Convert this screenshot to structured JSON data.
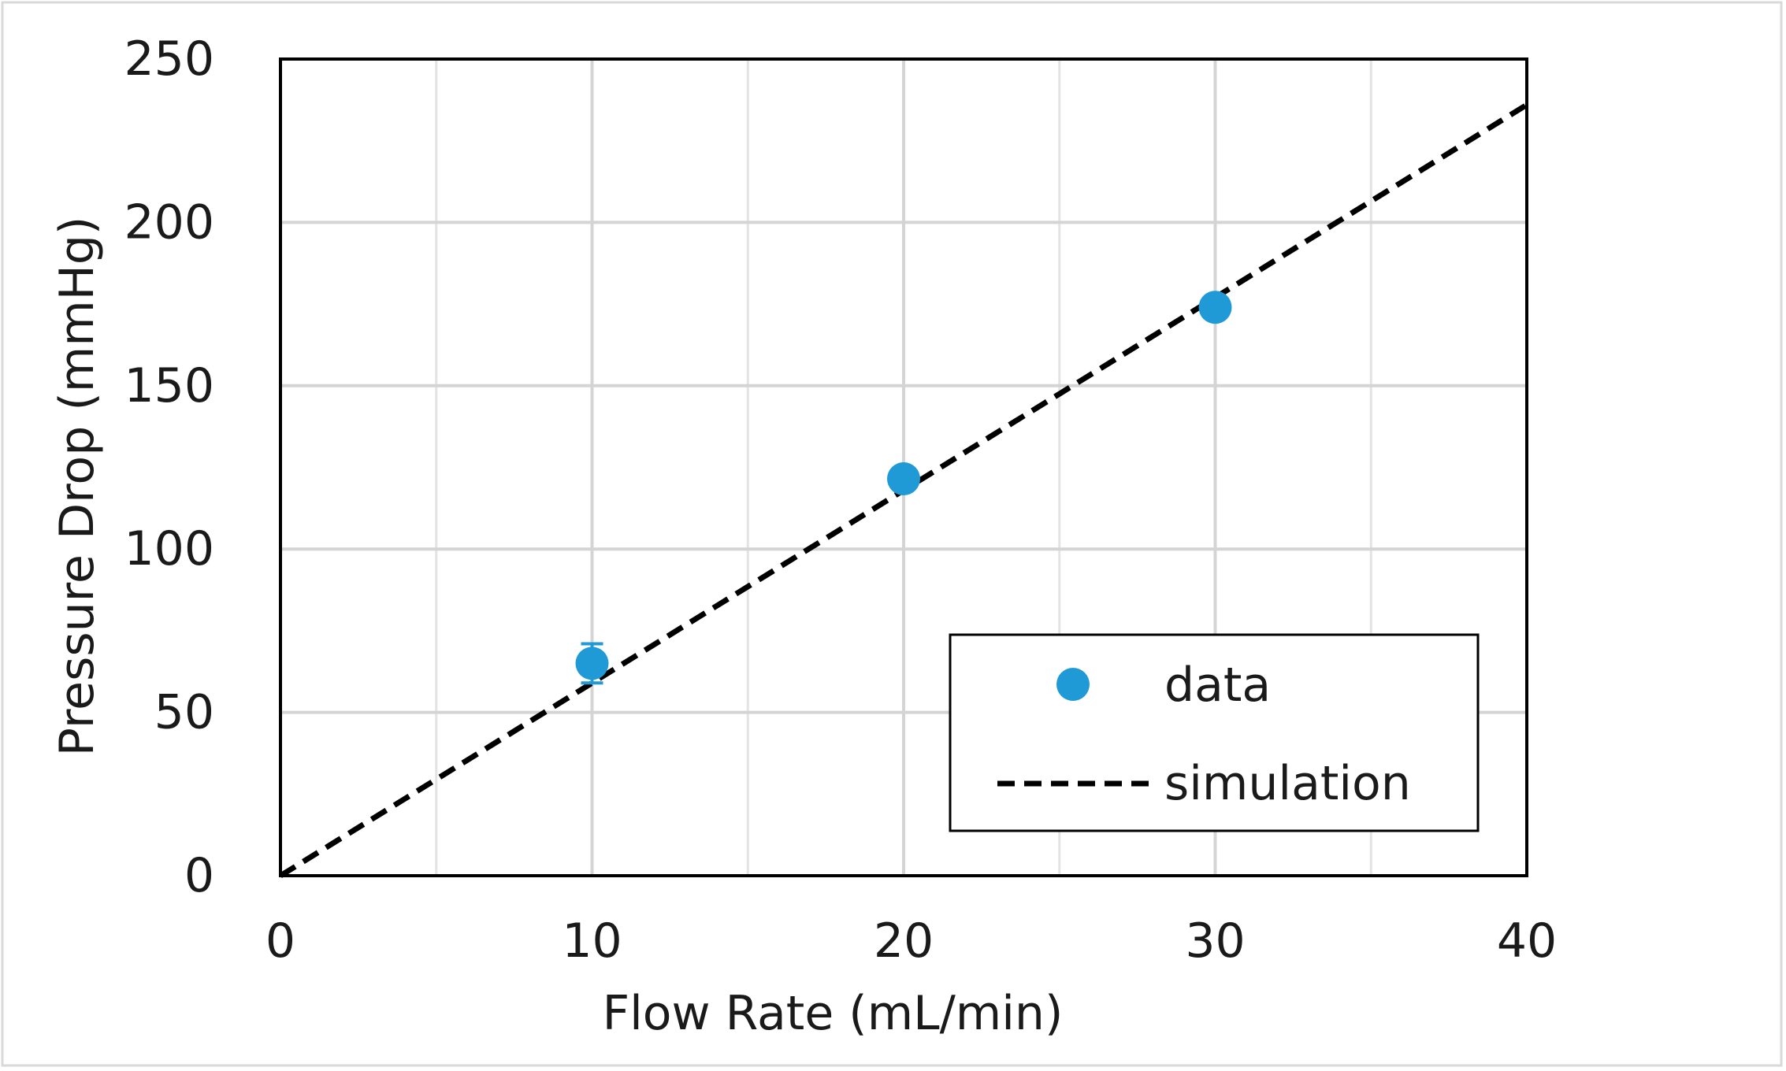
{
  "chart_data": {
    "type": "scatter",
    "title": "",
    "xlabel": "Flow Rate (mL/min)",
    "ylabel": "Pressure Drop (mmHg)",
    "xlim": [
      0,
      40
    ],
    "ylim": [
      0,
      250
    ],
    "x_ticks": [
      0,
      10,
      20,
      30,
      40
    ],
    "y_ticks": [
      0,
      50,
      100,
      150,
      200,
      250
    ],
    "x_minor_grid": [
      5,
      15,
      25,
      35
    ],
    "grid": true,
    "legend_position": "bottom-right",
    "series": [
      {
        "name": "data",
        "kind": "scatter",
        "color": "#1f9ad6",
        "points": [
          {
            "x": 10,
            "y": 65,
            "err": 6
          },
          {
            "x": 20,
            "y": 121.5,
            "err": 2
          },
          {
            "x": 30,
            "y": 174,
            "err": 2
          }
        ]
      },
      {
        "name": "simulation",
        "kind": "line",
        "style": "dashed",
        "color": "#000000",
        "points": [
          {
            "x": 0,
            "y": 0
          },
          {
            "x": 40,
            "y": 236
          }
        ]
      }
    ]
  }
}
